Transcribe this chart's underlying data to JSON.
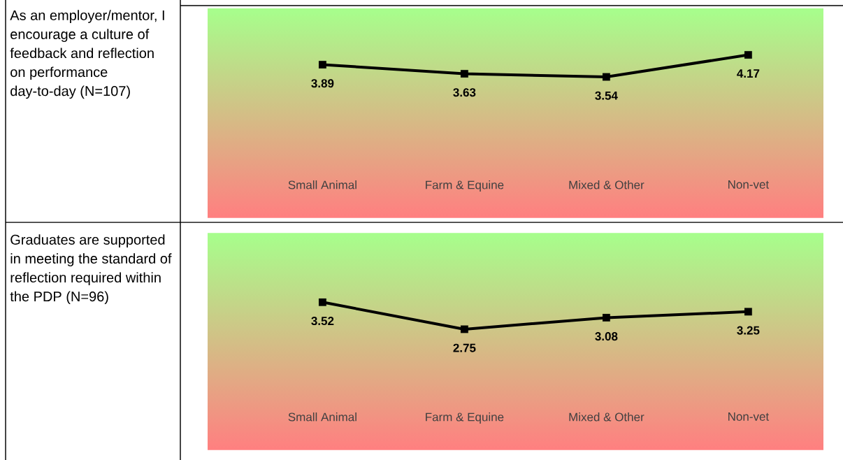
{
  "chart_data": [
    {
      "type": "line",
      "title": "As an employer/mentor, I encourage a culture of feedback and reflection on performance day-to-day (N=107)",
      "categories": [
        "Small Animal",
        "Farm & Equine",
        "Mixed & Other",
        "Non-vet"
      ],
      "values": [
        3.89,
        3.63,
        3.54,
        4.17
      ],
      "color": "#000000",
      "marker": "square",
      "ylim": [
        -0.5,
        5.5
      ],
      "tick_labels": "x",
      "data_labels": true
    },
    {
      "type": "line",
      "title": "Graduates are supported in meeting the standard of reflection required within the PDP (N=96)",
      "categories": [
        "Small Animal",
        "Farm & Equine",
        "Mixed & Other",
        "Non-vet"
      ],
      "values": [
        3.52,
        2.75,
        3.08,
        3.25
      ],
      "color": "#000000",
      "marker": "square",
      "ylim": [
        -0.7,
        5.5
      ],
      "tick_labels": "x",
      "data_labels": true
    }
  ]
}
